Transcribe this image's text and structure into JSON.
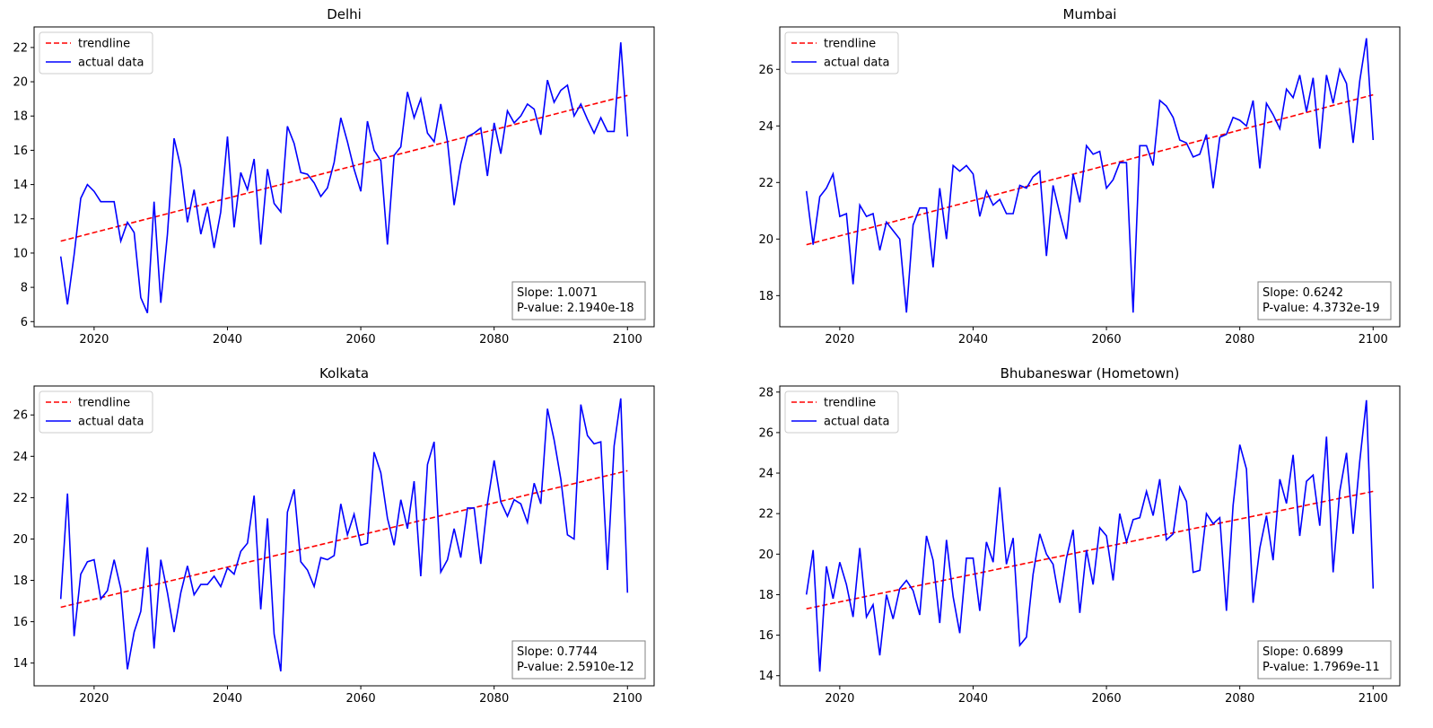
{
  "chart_data": [
    {
      "type": "line",
      "title": "Delhi",
      "xlabel": "",
      "ylabel": "",
      "xlim": [
        2011,
        2104
      ],
      "ylim": [
        5.7,
        23.2
      ],
      "xticks": [
        2020,
        2040,
        2060,
        2080,
        2100
      ],
      "yticks": [
        6,
        8,
        10,
        12,
        14,
        16,
        18,
        20,
        22
      ],
      "grid": false,
      "legend": {
        "position": "top-left",
        "entries": [
          "trendline",
          "actual data"
        ]
      },
      "stats": {
        "slope": "Slope: 1.0071",
        "pvalue": "P-value: 2.1940e-18"
      },
      "series": [
        {
          "name": "trendline",
          "color": "#ff0000",
          "style": "dashed",
          "x": [
            2015,
            2100
          ],
          "y": [
            10.7,
            19.2
          ]
        },
        {
          "name": "actual data",
          "color": "#0000ff",
          "style": "solid",
          "x": [
            2015,
            2016,
            2017,
            2018,
            2019,
            2020,
            2021,
            2022,
            2023,
            2024,
            2025,
            2026,
            2027,
            2028,
            2029,
            2030,
            2031,
            2032,
            2033,
            2034,
            2035,
            2036,
            2037,
            2038,
            2039,
            2040,
            2041,
            2042,
            2043,
            2044,
            2045,
            2046,
            2047,
            2048,
            2049,
            2050,
            2051,
            2052,
            2053,
            2054,
            2055,
            2056,
            2057,
            2058,
            2059,
            2060,
            2061,
            2062,
            2063,
            2064,
            2065,
            2066,
            2067,
            2068,
            2069,
            2070,
            2071,
            2072,
            2073,
            2074,
            2075,
            2076,
            2077,
            2078,
            2079,
            2080,
            2081,
            2082,
            2083,
            2084,
            2085,
            2086,
            2087,
            2088,
            2089,
            2090,
            2091,
            2092,
            2093,
            2094,
            2095,
            2096,
            2097,
            2098,
            2099,
            2100
          ],
          "y": [
            9.8,
            7.0,
            9.9,
            13.2,
            14.0,
            13.6,
            13.0,
            13.0,
            13.0,
            10.7,
            11.8,
            11.2,
            7.4,
            6.5,
            13.0,
            7.1,
            11.1,
            16.7,
            15.0,
            11.8,
            13.7,
            11.1,
            12.7,
            10.3,
            12.4,
            16.8,
            11.5,
            14.7,
            13.7,
            15.5,
            10.5,
            14.9,
            12.9,
            12.4,
            17.4,
            16.4,
            14.7,
            14.6,
            14.1,
            13.3,
            13.8,
            15.3,
            17.9,
            16.5,
            14.9,
            13.6,
            17.7,
            16.0,
            15.4,
            10.5,
            15.7,
            16.2,
            19.4,
            17.9,
            19.0,
            17.0,
            16.5,
            18.7,
            16.5,
            12.8,
            15.2,
            16.8,
            17.0,
            17.3,
            14.5,
            17.6,
            15.8,
            18.3,
            17.6,
            18.0,
            18.7,
            18.4,
            16.9,
            20.1,
            18.8,
            19.5,
            19.8,
            18.0,
            18.7,
            17.8,
            17.0,
            17.9,
            17.1,
            17.1,
            22.3,
            16.8
          ]
        }
      ]
    },
    {
      "type": "line",
      "title": "Mumbai",
      "xlabel": "",
      "ylabel": "",
      "xlim": [
        2011,
        2104
      ],
      "ylim": [
        16.9,
        27.5
      ],
      "xticks": [
        2020,
        2040,
        2060,
        2080,
        2100
      ],
      "yticks": [
        18,
        20,
        22,
        24,
        26
      ],
      "grid": false,
      "legend": {
        "position": "top-left",
        "entries": [
          "trendline",
          "actual data"
        ]
      },
      "stats": {
        "slope": "Slope: 0.6242",
        "pvalue": "P-value: 4.3732e-19"
      },
      "series": [
        {
          "name": "trendline",
          "color": "#ff0000",
          "style": "dashed",
          "x": [
            2015,
            2100
          ],
          "y": [
            19.8,
            25.1
          ]
        },
        {
          "name": "actual data",
          "color": "#0000ff",
          "style": "solid",
          "x": [
            2015,
            2016,
            2017,
            2018,
            2019,
            2020,
            2021,
            2022,
            2023,
            2024,
            2025,
            2026,
            2027,
            2028,
            2029,
            2030,
            2031,
            2032,
            2033,
            2034,
            2035,
            2036,
            2037,
            2038,
            2039,
            2040,
            2041,
            2042,
            2043,
            2044,
            2045,
            2046,
            2047,
            2048,
            2049,
            2050,
            2051,
            2052,
            2053,
            2054,
            2055,
            2056,
            2057,
            2058,
            2059,
            2060,
            2061,
            2062,
            2063,
            2064,
            2065,
            2066,
            2067,
            2068,
            2069,
            2070,
            2071,
            2072,
            2073,
            2074,
            2075,
            2076,
            2077,
            2078,
            2079,
            2080,
            2081,
            2082,
            2083,
            2084,
            2085,
            2086,
            2087,
            2088,
            2089,
            2090,
            2091,
            2092,
            2093,
            2094,
            2095,
            2096,
            2097,
            2098,
            2099,
            2100
          ],
          "y": [
            21.7,
            19.8,
            21.5,
            21.8,
            22.3,
            20.8,
            20.9,
            18.4,
            21.2,
            20.8,
            20.9,
            19.6,
            20.6,
            20.3,
            20.0,
            17.4,
            20.5,
            21.1,
            21.1,
            19.0,
            21.8,
            20.0,
            22.6,
            22.4,
            22.6,
            22.3,
            20.8,
            21.7,
            21.2,
            21.4,
            20.9,
            20.9,
            21.9,
            21.8,
            22.2,
            22.4,
            19.4,
            21.9,
            20.9,
            20.0,
            22.3,
            21.3,
            23.3,
            23.0,
            23.1,
            21.8,
            22.1,
            22.7,
            22.7,
            17.4,
            23.3,
            23.3,
            22.6,
            24.9,
            24.7,
            24.3,
            23.5,
            23.4,
            22.9,
            23.0,
            23.7,
            21.8,
            23.6,
            23.7,
            24.3,
            24.2,
            24.0,
            24.9,
            22.5,
            24.8,
            24.4,
            23.9,
            25.3,
            25.0,
            25.8,
            24.5,
            25.7,
            23.2,
            25.8,
            24.8,
            26.0,
            25.5,
            23.4,
            25.6,
            27.1,
            23.5
          ]
        }
      ]
    },
    {
      "type": "line",
      "title": "Kolkata",
      "xlabel": "",
      "ylabel": "",
      "xlim": [
        2011,
        2104
      ],
      "ylim": [
        12.9,
        27.4
      ],
      "xticks": [
        2020,
        2040,
        2060,
        2080,
        2100
      ],
      "yticks": [
        14,
        16,
        18,
        20,
        22,
        24,
        26
      ],
      "grid": false,
      "legend": {
        "position": "top-left",
        "entries": [
          "trendline",
          "actual data"
        ]
      },
      "stats": {
        "slope": "Slope: 0.7744",
        "pvalue": "P-value: 2.5910e-12"
      },
      "series": [
        {
          "name": "trendline",
          "color": "#ff0000",
          "style": "dashed",
          "x": [
            2015,
            2100
          ],
          "y": [
            16.7,
            23.3
          ]
        },
        {
          "name": "actual data",
          "color": "#0000ff",
          "style": "solid",
          "x": [
            2015,
            2016,
            2017,
            2018,
            2019,
            2020,
            2021,
            2022,
            2023,
            2024,
            2025,
            2026,
            2027,
            2028,
            2029,
            2030,
            2031,
            2032,
            2033,
            2034,
            2035,
            2036,
            2037,
            2038,
            2039,
            2040,
            2041,
            2042,
            2043,
            2044,
            2045,
            2046,
            2047,
            2048,
            2049,
            2050,
            2051,
            2052,
            2053,
            2054,
            2055,
            2056,
            2057,
            2058,
            2059,
            2060,
            2061,
            2062,
            2063,
            2064,
            2065,
            2066,
            2067,
            2068,
            2069,
            2070,
            2071,
            2072,
            2073,
            2074,
            2075,
            2076,
            2077,
            2078,
            2079,
            2080,
            2081,
            2082,
            2083,
            2084,
            2085,
            2086,
            2087,
            2088,
            2089,
            2090,
            2091,
            2092,
            2093,
            2094,
            2095,
            2096,
            2097,
            2098,
            2099,
            2100
          ],
          "y": [
            17.1,
            22.2,
            15.3,
            18.3,
            18.9,
            19.0,
            17.1,
            17.5,
            19.0,
            17.6,
            13.7,
            15.5,
            16.5,
            19.6,
            14.7,
            19.0,
            17.4,
            15.5,
            17.4,
            18.7,
            17.3,
            17.8,
            17.8,
            18.2,
            17.7,
            18.6,
            18.3,
            19.4,
            19.8,
            22.1,
            16.6,
            21.0,
            15.4,
            13.6,
            21.3,
            22.4,
            18.9,
            18.5,
            17.7,
            19.1,
            19.0,
            19.2,
            21.7,
            20.2,
            21.2,
            19.7,
            19.8,
            24.2,
            23.2,
            21.0,
            19.7,
            21.9,
            20.5,
            22.8,
            18.2,
            23.6,
            24.7,
            18.4,
            19.0,
            20.5,
            19.1,
            21.5,
            21.5,
            18.8,
            21.7,
            23.8,
            21.8,
            21.1,
            21.9,
            21.7,
            20.8,
            22.7,
            21.7,
            26.3,
            24.8,
            22.9,
            20.2,
            20.0,
            26.5,
            25.0,
            24.6,
            24.7,
            18.5,
            24.5,
            26.8,
            17.4
          ]
        }
      ]
    },
    {
      "type": "line",
      "title": "Bhubaneswar (Hometown)",
      "xlabel": "",
      "ylabel": "",
      "xlim": [
        2011,
        2104
      ],
      "ylim": [
        13.5,
        28.3
      ],
      "xticks": [
        2020,
        2040,
        2060,
        2080,
        2100
      ],
      "yticks": [
        14,
        16,
        18,
        20,
        22,
        24,
        26,
        28
      ],
      "grid": false,
      "legend": {
        "position": "top-left",
        "entries": [
          "trendline",
          "actual data"
        ]
      },
      "stats": {
        "slope": "Slope: 0.6899",
        "pvalue": "P-value: 1.7969e-11"
      },
      "series": [
        {
          "name": "trendline",
          "color": "#ff0000",
          "style": "dashed",
          "x": [
            2015,
            2100
          ],
          "y": [
            17.3,
            23.1
          ]
        },
        {
          "name": "actual data",
          "color": "#0000ff",
          "style": "solid",
          "x": [
            2015,
            2016,
            2017,
            2018,
            2019,
            2020,
            2021,
            2022,
            2023,
            2024,
            2025,
            2026,
            2027,
            2028,
            2029,
            2030,
            2031,
            2032,
            2033,
            2034,
            2035,
            2036,
            2037,
            2038,
            2039,
            2040,
            2041,
            2042,
            2043,
            2044,
            2045,
            2046,
            2047,
            2048,
            2049,
            2050,
            2051,
            2052,
            2053,
            2054,
            2055,
            2056,
            2057,
            2058,
            2059,
            2060,
            2061,
            2062,
            2063,
            2064,
            2065,
            2066,
            2067,
            2068,
            2069,
            2070,
            2071,
            2072,
            2073,
            2074,
            2075,
            2076,
            2077,
            2078,
            2079,
            2080,
            2081,
            2082,
            2083,
            2084,
            2085,
            2086,
            2087,
            2088,
            2089,
            2090,
            2091,
            2092,
            2093,
            2094,
            2095,
            2096,
            2097,
            2098,
            2099,
            2100
          ],
          "y": [
            18.0,
            20.2,
            14.2,
            19.4,
            17.8,
            19.6,
            18.5,
            16.9,
            20.3,
            16.9,
            17.5,
            15.0,
            18.0,
            16.8,
            18.3,
            18.7,
            18.2,
            17.0,
            20.9,
            19.7,
            16.6,
            20.7,
            17.9,
            16.1,
            19.8,
            19.8,
            17.2,
            20.6,
            19.6,
            23.3,
            19.5,
            20.8,
            15.5,
            15.9,
            19.0,
            21.0,
            20.0,
            19.5,
            17.6,
            19.8,
            21.2,
            17.1,
            20.2,
            18.5,
            21.3,
            20.9,
            18.7,
            22.0,
            20.6,
            21.7,
            21.8,
            23.1,
            21.9,
            23.7,
            20.7,
            21.0,
            23.3,
            22.6,
            19.1,
            19.2,
            22.0,
            21.5,
            21.8,
            17.2,
            22.4,
            25.4,
            24.2,
            17.6,
            20.3,
            21.9,
            19.7,
            23.7,
            22.5,
            24.9,
            20.9,
            23.6,
            23.9,
            21.4,
            25.8,
            19.1,
            23.1,
            25.0,
            21.0,
            24.6,
            27.6,
            18.3
          ]
        }
      ]
    }
  ]
}
